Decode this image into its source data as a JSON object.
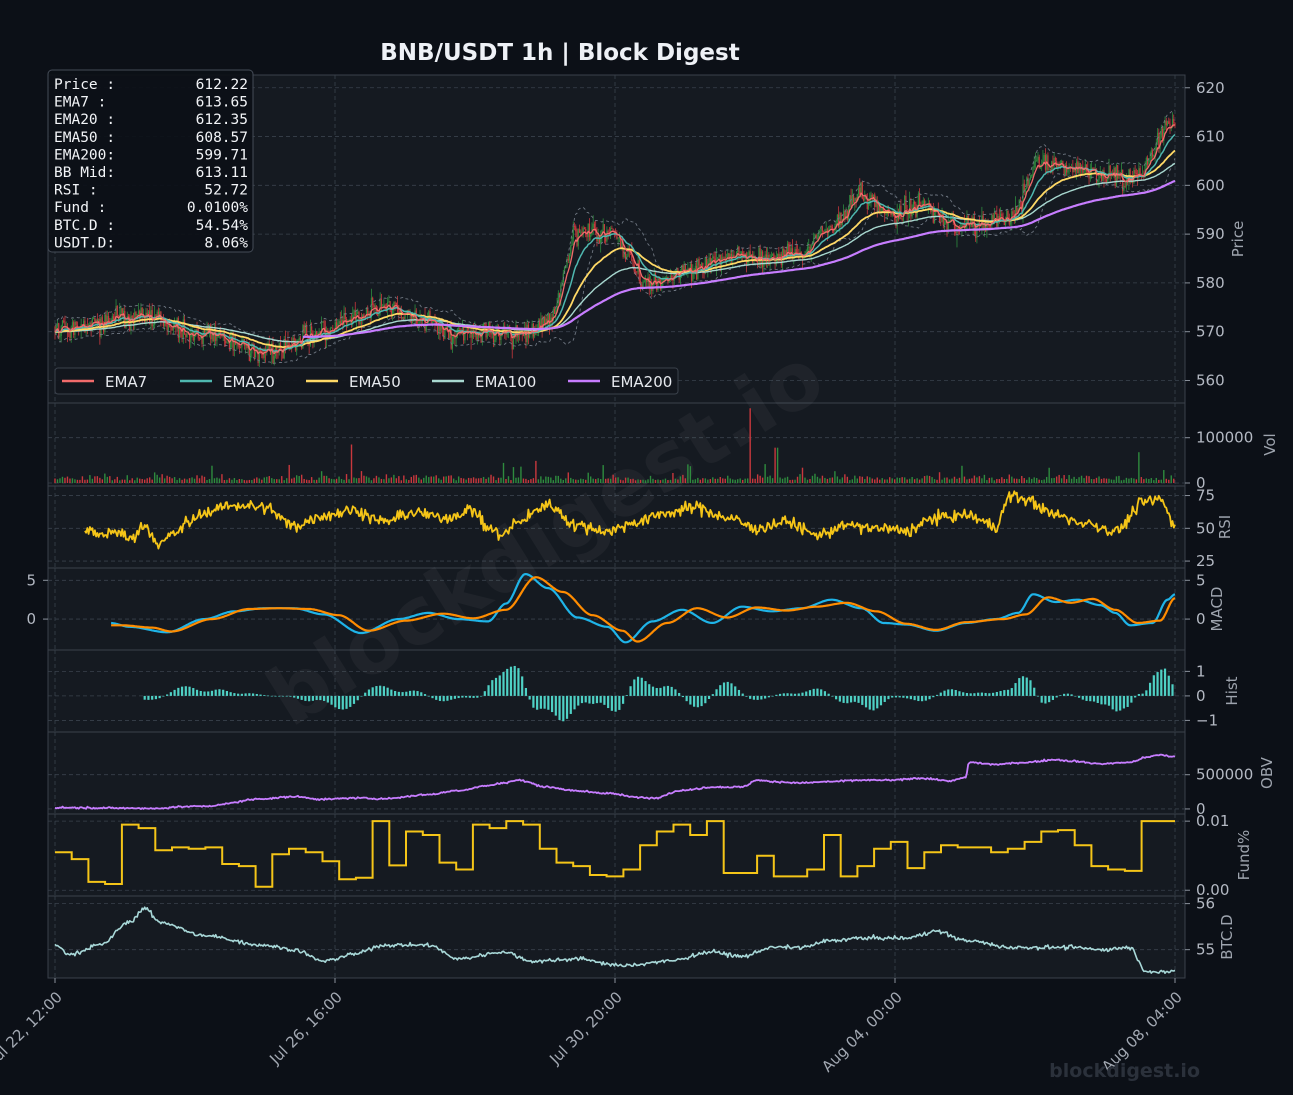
{
  "title": "BNB/USDT  1h  |  Block Digest",
  "watermark": "blockdigest.io",
  "footer_brand": "blockdigest.io",
  "info_box": [
    {
      "label": "Price :",
      "value": "612.22"
    },
    {
      "label": "EMA7  :",
      "value": "613.65"
    },
    {
      "label": "EMA20 :",
      "value": "612.35"
    },
    {
      "label": "EMA50 :",
      "value": "608.57"
    },
    {
      "label": "EMA200:",
      "value": "599.71"
    },
    {
      "label": "BB Mid:",
      "value": "613.11"
    },
    {
      "label": "RSI   :",
      "value": "52.72"
    },
    {
      "label": "Fund  :",
      "value": "0.0100%"
    },
    {
      "label": "BTC.D :",
      "value": "54.54%"
    },
    {
      "label": "USDT.D:",
      "value": "8.06%"
    }
  ],
  "colors": {
    "background": "#0c1017",
    "panel": "#151a21",
    "grid": "#39414c",
    "up": "#2e8b3e",
    "down": "#c8383d",
    "ema7": "#f26b6b",
    "ema20": "#4fb8b0",
    "ema50": "#ffd966",
    "ema100": "#a8d8d0",
    "ema200": "#c77dff",
    "rsi": "#f5c518",
    "macd": "#1fb4e8",
    "signal": "#ff8c00",
    "hist": "#4fd1c5",
    "obv": "#c77dff",
    "funding": "#f5c518",
    "btcd": "#a8d8d8"
  },
  "chart_data": {
    "type": "candlestick",
    "symbol": "BNB/USDT",
    "interval": "1h",
    "x_ticks": [
      "Jul 22, 12:00",
      "Jul 26, 16:00",
      "Jul 30, 20:00",
      "Aug 04, 00:00",
      "Aug 08, 04:00"
    ],
    "grid": true,
    "legend": {
      "position": "lower-left",
      "entries": [
        "EMA7",
        "EMA20",
        "EMA50",
        "EMA100",
        "EMA200"
      ]
    },
    "panels": [
      {
        "id": "price",
        "ylabel": "Price",
        "ylim": [
          556,
          622
        ],
        "ticks": [
          560,
          570,
          580,
          590,
          600,
          610,
          620
        ],
        "anchors": [
          [
            0,
            571
          ],
          [
            6,
            573
          ],
          [
            10,
            569
          ],
          [
            14,
            566
          ],
          [
            18,
            570
          ],
          [
            22,
            575
          ],
          [
            25,
            572
          ],
          [
            27,
            569
          ],
          [
            31,
            570
          ],
          [
            33,
            572
          ],
          [
            35,
            590
          ],
          [
            37,
            590
          ],
          [
            40,
            580
          ],
          [
            43,
            583
          ],
          [
            46,
            586
          ],
          [
            48,
            585
          ],
          [
            50,
            586
          ],
          [
            52,
            592
          ],
          [
            54,
            598
          ],
          [
            56,
            594
          ],
          [
            58,
            596
          ],
          [
            60,
            592
          ],
          [
            62,
            592
          ],
          [
            64,
            594
          ],
          [
            66,
            605
          ],
          [
            68,
            604
          ],
          [
            70,
            602
          ],
          [
            72,
            601
          ],
          [
            75,
            613
          ]
        ],
        "last_close": 612.22
      },
      {
        "id": "volume",
        "ylabel": "Vol",
        "ylim": [
          0,
          170000
        ],
        "ticks": [
          0,
          100000
        ],
        "spikes": [
          [
            19.8,
            85000
          ],
          [
            46.5,
            165000
          ],
          [
            48.3,
            78000
          ],
          [
            60.8,
            38000
          ],
          [
            72.6,
            68000
          ]
        ]
      },
      {
        "id": "rsi",
        "ylabel": "RSI",
        "ylim": [
          22,
          80
        ],
        "ticks": [
          25,
          50,
          75
        ],
        "anchors": [
          [
            2,
            50
          ],
          [
            3,
            44
          ],
          [
            4,
            48
          ],
          [
            5,
            42
          ],
          [
            6,
            52
          ],
          [
            7,
            38
          ],
          [
            8,
            46
          ],
          [
            9,
            55
          ],
          [
            10,
            62
          ],
          [
            12,
            68
          ],
          [
            14,
            66
          ],
          [
            16,
            52
          ],
          [
            18,
            60
          ],
          [
            20,
            64
          ],
          [
            22,
            55
          ],
          [
            24,
            62
          ],
          [
            26,
            58
          ],
          [
            28,
            64
          ],
          [
            29,
            50
          ],
          [
            30,
            45
          ],
          [
            31,
            55
          ],
          [
            33,
            68
          ],
          [
            35,
            52
          ],
          [
            37,
            48
          ],
          [
            39,
            55
          ],
          [
            41,
            62
          ],
          [
            43,
            66
          ],
          [
            45,
            58
          ],
          [
            47,
            50
          ],
          [
            49,
            55
          ],
          [
            51,
            45
          ],
          [
            53,
            52
          ],
          [
            55,
            50
          ],
          [
            57,
            48
          ],
          [
            59,
            58
          ],
          [
            61,
            60
          ],
          [
            63,
            52
          ],
          [
            64,
            75
          ],
          [
            65,
            72
          ],
          [
            67,
            60
          ],
          [
            69,
            54
          ],
          [
            71,
            48
          ],
          [
            73,
            70
          ],
          [
            74,
            72
          ],
          [
            75,
            52.72
          ]
        ]
      },
      {
        "id": "macd",
        "ylabel": "MACD",
        "ylim": [
          -3.6,
          6.2
        ],
        "ticks": [
          0,
          5
        ],
        "macd_anchors": [
          [
            3.7,
            -0.5
          ],
          [
            5,
            -1
          ],
          [
            7.5,
            -1.7
          ],
          [
            10,
            0
          ],
          [
            12,
            1
          ],
          [
            14,
            1.4
          ],
          [
            16,
            1.4
          ],
          [
            18,
            0.6
          ],
          [
            20.5,
            -1.8
          ],
          [
            23,
            0
          ],
          [
            25,
            0.8
          ],
          [
            27,
            0
          ],
          [
            29,
            -0.3
          ],
          [
            30.2,
            2
          ],
          [
            31.5,
            5.8
          ],
          [
            33,
            4
          ],
          [
            35,
            0.2
          ],
          [
            37,
            -1
          ],
          [
            38.2,
            -3
          ],
          [
            40,
            -0.3
          ],
          [
            42,
            1.2
          ],
          [
            44,
            -0.5
          ],
          [
            46,
            1.6
          ],
          [
            48,
            1.0
          ],
          [
            50,
            1.4
          ],
          [
            52,
            2.5
          ],
          [
            54,
            1.4
          ],
          [
            55.5,
            -0.5
          ],
          [
            57,
            -0.7
          ],
          [
            59,
            -1.5
          ],
          [
            61,
            -0.5
          ],
          [
            63,
            0
          ],
          [
            64.5,
            0.8
          ],
          [
            65.5,
            3.2
          ],
          [
            67,
            2.2
          ],
          [
            68.5,
            2.5
          ],
          [
            70,
            1.8
          ],
          [
            71,
            0.8
          ],
          [
            72,
            -0.8
          ],
          [
            73.5,
            -0.5
          ],
          [
            74.5,
            2.5
          ],
          [
            75,
            3.2
          ],
          [
            75.1,
            1.8
          ]
        ],
        "signal_anchors": [
          [
            4.5,
            -0.8
          ],
          [
            6.5,
            -1.1
          ],
          [
            7.8,
            -1.6
          ],
          [
            10.5,
            0
          ],
          [
            13,
            1.3
          ],
          [
            15,
            1.4
          ],
          [
            17,
            1.3
          ],
          [
            19,
            0.5
          ],
          [
            21,
            -1.5
          ],
          [
            23.5,
            -0.2
          ],
          [
            26,
            0.7
          ],
          [
            28,
            0.1
          ],
          [
            30.2,
            1.2
          ],
          [
            32.2,
            5.4
          ],
          [
            34,
            3.5
          ],
          [
            36,
            0.5
          ],
          [
            38,
            -1.5
          ],
          [
            39,
            -2.9
          ],
          [
            41,
            -0.5
          ],
          [
            43,
            1.4
          ],
          [
            45,
            0.2
          ],
          [
            47,
            1.5
          ],
          [
            49,
            1.1
          ],
          [
            51,
            1.6
          ],
          [
            53,
            2.1
          ],
          [
            55,
            1.0
          ],
          [
            57,
            -0.6
          ],
          [
            59,
            -1.4
          ],
          [
            61,
            -0.4
          ],
          [
            63.5,
            0
          ],
          [
            65,
            0.6
          ],
          [
            66.5,
            2.8
          ],
          [
            68,
            2.1
          ],
          [
            69.5,
            2.6
          ],
          [
            71,
            1.2
          ],
          [
            72.5,
            -0.5
          ],
          [
            74,
            -0.2
          ],
          [
            75,
            2.7
          ],
          [
            75.1,
            2.6
          ]
        ]
      },
      {
        "id": "hist",
        "ylabel": "Hist",
        "ylim": [
          -1.35,
          1.75
        ],
        "ticks": [
          -1,
          0,
          1
        ]
      },
      {
        "id": "obv",
        "ylabel": "OBV",
        "ylim": [
          -30000,
          1080000
        ],
        "ticks": [
          0,
          500000
        ],
        "anchors": [
          [
            0,
            20000
          ],
          [
            6,
            10000
          ],
          [
            7,
            5000
          ],
          [
            8,
            30000
          ],
          [
            10,
            40000
          ],
          [
            14,
            150000
          ],
          [
            16,
            180000
          ],
          [
            18,
            140000
          ],
          [
            20,
            160000
          ],
          [
            22,
            150000
          ],
          [
            25,
            210000
          ],
          [
            27,
            270000
          ],
          [
            29,
            340000
          ],
          [
            30,
            380000
          ],
          [
            31,
            420000
          ],
          [
            33,
            320000
          ],
          [
            35,
            260000
          ],
          [
            37,
            230000
          ],
          [
            39,
            170000
          ],
          [
            40,
            160000
          ],
          [
            42,
            270000
          ],
          [
            44,
            320000
          ],
          [
            46,
            320000
          ],
          [
            47,
            420000
          ],
          [
            48,
            400000
          ],
          [
            50,
            380000
          ],
          [
            52,
            400000
          ],
          [
            54,
            420000
          ],
          [
            56,
            420000
          ],
          [
            58,
            450000
          ],
          [
            60,
            410000
          ],
          [
            61,
            460000
          ],
          [
            61.2,
            680000
          ],
          [
            63,
            650000
          ],
          [
            65,
            680000
          ],
          [
            67,
            720000
          ],
          [
            68,
            700000
          ],
          [
            70,
            660000
          ],
          [
            72,
            680000
          ],
          [
            73,
            750000
          ],
          [
            74,
            790000
          ],
          [
            75,
            760000
          ]
        ]
      },
      {
        "id": "funding",
        "ylabel": "Fund%",
        "ylim": [
          -0.0004,
          0.0106
        ],
        "ticks": [
          0.0,
          0.01
        ],
        "tick_labels": [
          "0.00",
          "0.01"
        ]
      },
      {
        "id": "btcd",
        "ylabel": "BTC.D",
        "ylim": [
          54.45,
          56.1
        ],
        "ticks": [
          55,
          56
        ],
        "anchors": [
          [
            0,
            55.1
          ],
          [
            1,
            54.9
          ],
          [
            3,
            55.1
          ],
          [
            5,
            55.6
          ],
          [
            6,
            55.9
          ],
          [
            7,
            55.6
          ],
          [
            10,
            55.3
          ],
          [
            14,
            55.1
          ],
          [
            16,
            55.0
          ],
          [
            18,
            54.75
          ],
          [
            20,
            54.9
          ],
          [
            22,
            55.1
          ],
          [
            25,
            55.1
          ],
          [
            27,
            54.8
          ],
          [
            30,
            54.95
          ],
          [
            32,
            54.75
          ],
          [
            35,
            54.8
          ],
          [
            38,
            54.65
          ],
          [
            41,
            54.75
          ],
          [
            44,
            54.95
          ],
          [
            46,
            54.85
          ],
          [
            48,
            55.05
          ],
          [
            50,
            55.05
          ],
          [
            52,
            55.2
          ],
          [
            54,
            55.25
          ],
          [
            57,
            55.25
          ],
          [
            59,
            55.4
          ],
          [
            61,
            55.2
          ],
          [
            64,
            55.05
          ],
          [
            66,
            55.05
          ],
          [
            68,
            55.05
          ],
          [
            70,
            55.0
          ],
          [
            72,
            55.05
          ],
          [
            73,
            54.55
          ],
          [
            74,
            54.5
          ],
          [
            75,
            54.54
          ]
        ]
      }
    ]
  }
}
